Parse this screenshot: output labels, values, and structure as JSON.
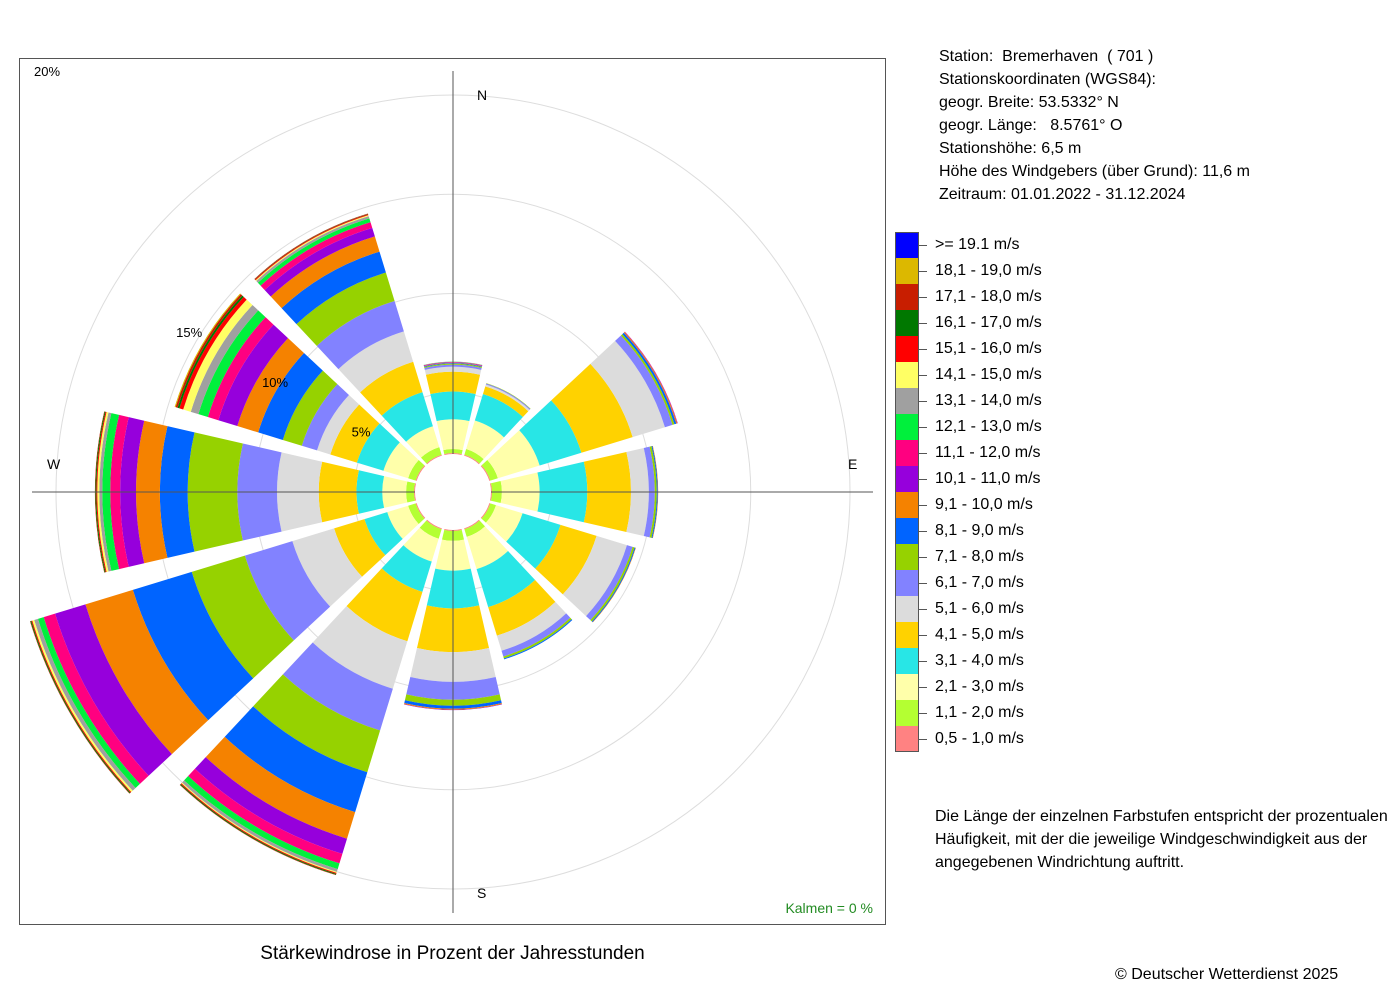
{
  "caption": "Stärkewindrose in Prozent der Jahresstunden",
  "copyright": "© Deutscher Wetterdienst  2025",
  "station_info": [
    "Station:  Bremerhaven  ( 701 )",
    "Stationskoordinaten (WGS84):",
    "geogr. Breite: 53.5332° N",
    "geogr. Länge:   8.5761° O",
    "Stationshöhe: 6,5 m",
    "Höhe des Windgebers (über Grund): 11,6 m",
    "Zeitraum: 01.01.2022 - 31.12.2024"
  ],
  "note": "Die Länge der einzelnen Farbstufen entspricht der prozentualen Häufigkeit, mit der die jeweilige Windgeschwindigkeit aus der angegebenen Windrichtung auftritt.",
  "calm": "Kalmen  =  0 %",
  "legend": [
    {
      "label": ">= 19.1 m/s",
      "color": "#0000ff"
    },
    {
      "label": "18,1 - 19,0 m/s",
      "color": "#dcb800"
    },
    {
      "label": "17,1 - 18,0 m/s",
      "color": "#c81e00"
    },
    {
      "label": "16,1 - 17,0 m/s",
      "color": "#007800"
    },
    {
      "label": "15,1 - 16,0 m/s",
      "color": "#ff0000"
    },
    {
      "label": "14,1 - 15,0 m/s",
      "color": "#ffff64"
    },
    {
      "label": "13,1 - 14,0 m/s",
      "color": "#a0a0a0"
    },
    {
      "label": "12,1 - 13,0 m/s",
      "color": "#00f03c"
    },
    {
      "label": "11,1 - 12,0 m/s",
      "color": "#ff0080"
    },
    {
      "label": "10,1 - 11,0 m/s",
      "color": "#9600dc"
    },
    {
      "label": "9,1 - 10,0 m/s",
      "color": "#f58200"
    },
    {
      "label": "8,1 - 9,0 m/s",
      "color": "#0064ff"
    },
    {
      "label": "7,1 - 8,0 m/s",
      "color": "#96d200"
    },
    {
      "label": "6,1 - 7,0 m/s",
      "color": "#8282ff"
    },
    {
      "label": "5,1 - 6,0 m/s",
      "color": "#dcdcdc"
    },
    {
      "label": "4,1 - 5,0 m/s",
      "color": "#ffd200"
    },
    {
      "label": "3,1 - 4,0 m/s",
      "color": "#28e6e6"
    },
    {
      "label": "2,1 - 3,0 m/s",
      "color": "#ffffaa"
    },
    {
      "label": "1,1 - 2,0 m/s",
      "color": "#b4ff32"
    },
    {
      "label": "0,5 - 1,0 m/s",
      "color": "#ff8282"
    }
  ],
  "chart_data": {
    "type": "windrose",
    "direction_labels": {
      "N": "N",
      "E": "E",
      "S": "S",
      "W": "W"
    },
    "ring_labels": [
      "5%",
      "10%",
      "15%",
      "20%"
    ],
    "rings": [
      5,
      10,
      15,
      20
    ],
    "r_max": 20,
    "sector_width_deg": 30,
    "class_order": "0,5-1,0 m/s … >=19,1 m/s (ascending)",
    "sectors": [
      {
        "dir": 0,
        "values": [
          0.05,
          0.2,
          1.5,
          1.4,
          1.0,
          0.25,
          0.1,
          0.05,
          0.03,
          0.02,
          0.02,
          0.02,
          0.01,
          0.01,
          0,
          0,
          0,
          0,
          0,
          0
        ]
      },
      {
        "dir": 30,
        "values": [
          0.05,
          0.3,
          1.5,
          1.4,
          0.4,
          0.1,
          0.05,
          0.02,
          0,
          0,
          0,
          0,
          0,
          0,
          0,
          0,
          0,
          0,
          0,
          0
        ]
      },
      {
        "dir": 60,
        "values": [
          0.05,
          0.4,
          2.2,
          2.2,
          2.7,
          1.7,
          0.4,
          0.1,
          0.1,
          0.05,
          0.02,
          0.01,
          0,
          0,
          0,
          0,
          0,
          0,
          0,
          0
        ]
      },
      {
        "dir": 90,
        "values": [
          0.05,
          0.5,
          1.9,
          2.4,
          2.2,
          0.9,
          0.3,
          0.1,
          0.05,
          0.02,
          0,
          0,
          0,
          0,
          0,
          0,
          0,
          0,
          0,
          0
        ]
      },
      {
        "dir": 120,
        "values": [
          0.05,
          0.3,
          1.4,
          2.0,
          1.9,
          1.6,
          0.3,
          0.1,
          0.05,
          0.02,
          0,
          0,
          0,
          0,
          0,
          0,
          0,
          0,
          0,
          0
        ]
      },
      {
        "dir": 150,
        "values": [
          0.05,
          0.4,
          1.7,
          2.0,
          1.5,
          0.8,
          0.3,
          0.1,
          0.05,
          0,
          0,
          0,
          0,
          0,
          0,
          0,
          0,
          0,
          0,
          0
        ]
      },
      {
        "dir": 180,
        "values": [
          0.05,
          0.5,
          1.5,
          1.9,
          2.2,
          1.5,
          0.9,
          0.3,
          0.15,
          0.05,
          0.02,
          0,
          0,
          0,
          0,
          0,
          0,
          0,
          0,
          0
        ]
      },
      {
        "dir": 210,
        "values": [
          0.05,
          0.5,
          1.2,
          1.6,
          2.6,
          2.5,
          2.2,
          2.2,
          2.1,
          1.4,
          0.8,
          0.5,
          0.3,
          0.15,
          0.05,
          0.05,
          0.05,
          0.02,
          0,
          0
        ]
      },
      {
        "dir": 240,
        "values": [
          0.05,
          0.4,
          1.1,
          1.2,
          1.6,
          2.2,
          2.5,
          2.8,
          3.1,
          2.5,
          1.6,
          0.6,
          0.3,
          0.2,
          0.1,
          0.05,
          0.05,
          0.02,
          0,
          0
        ]
      },
      {
        "dir": 270,
        "values": [
          0.05,
          0.4,
          1.2,
          1.3,
          1.9,
          2.1,
          2.0,
          2.5,
          1.4,
          1.2,
          0.8,
          0.5,
          0.4,
          0.15,
          0.1,
          0.05,
          0.05,
          0.02,
          0,
          0
        ]
      },
      {
        "dir": 300,
        "values": [
          0.05,
          0.4,
          1.3,
          1.4,
          1.4,
          0.7,
          0.8,
          1.0,
          1.3,
          1.1,
          1.0,
          0.55,
          0.5,
          0.4,
          0.4,
          0.2,
          0.1,
          0.1,
          0.05,
          0
        ]
      },
      {
        "dir": 330,
        "values": [
          0.05,
          0.4,
          1.1,
          1.8,
          1.6,
          1.6,
          1.6,
          1.5,
          1.1,
          0.8,
          0.45,
          0.3,
          0.2,
          0.12,
          0.05,
          0.05,
          0.02,
          0.02,
          0,
          0
        ]
      }
    ]
  }
}
